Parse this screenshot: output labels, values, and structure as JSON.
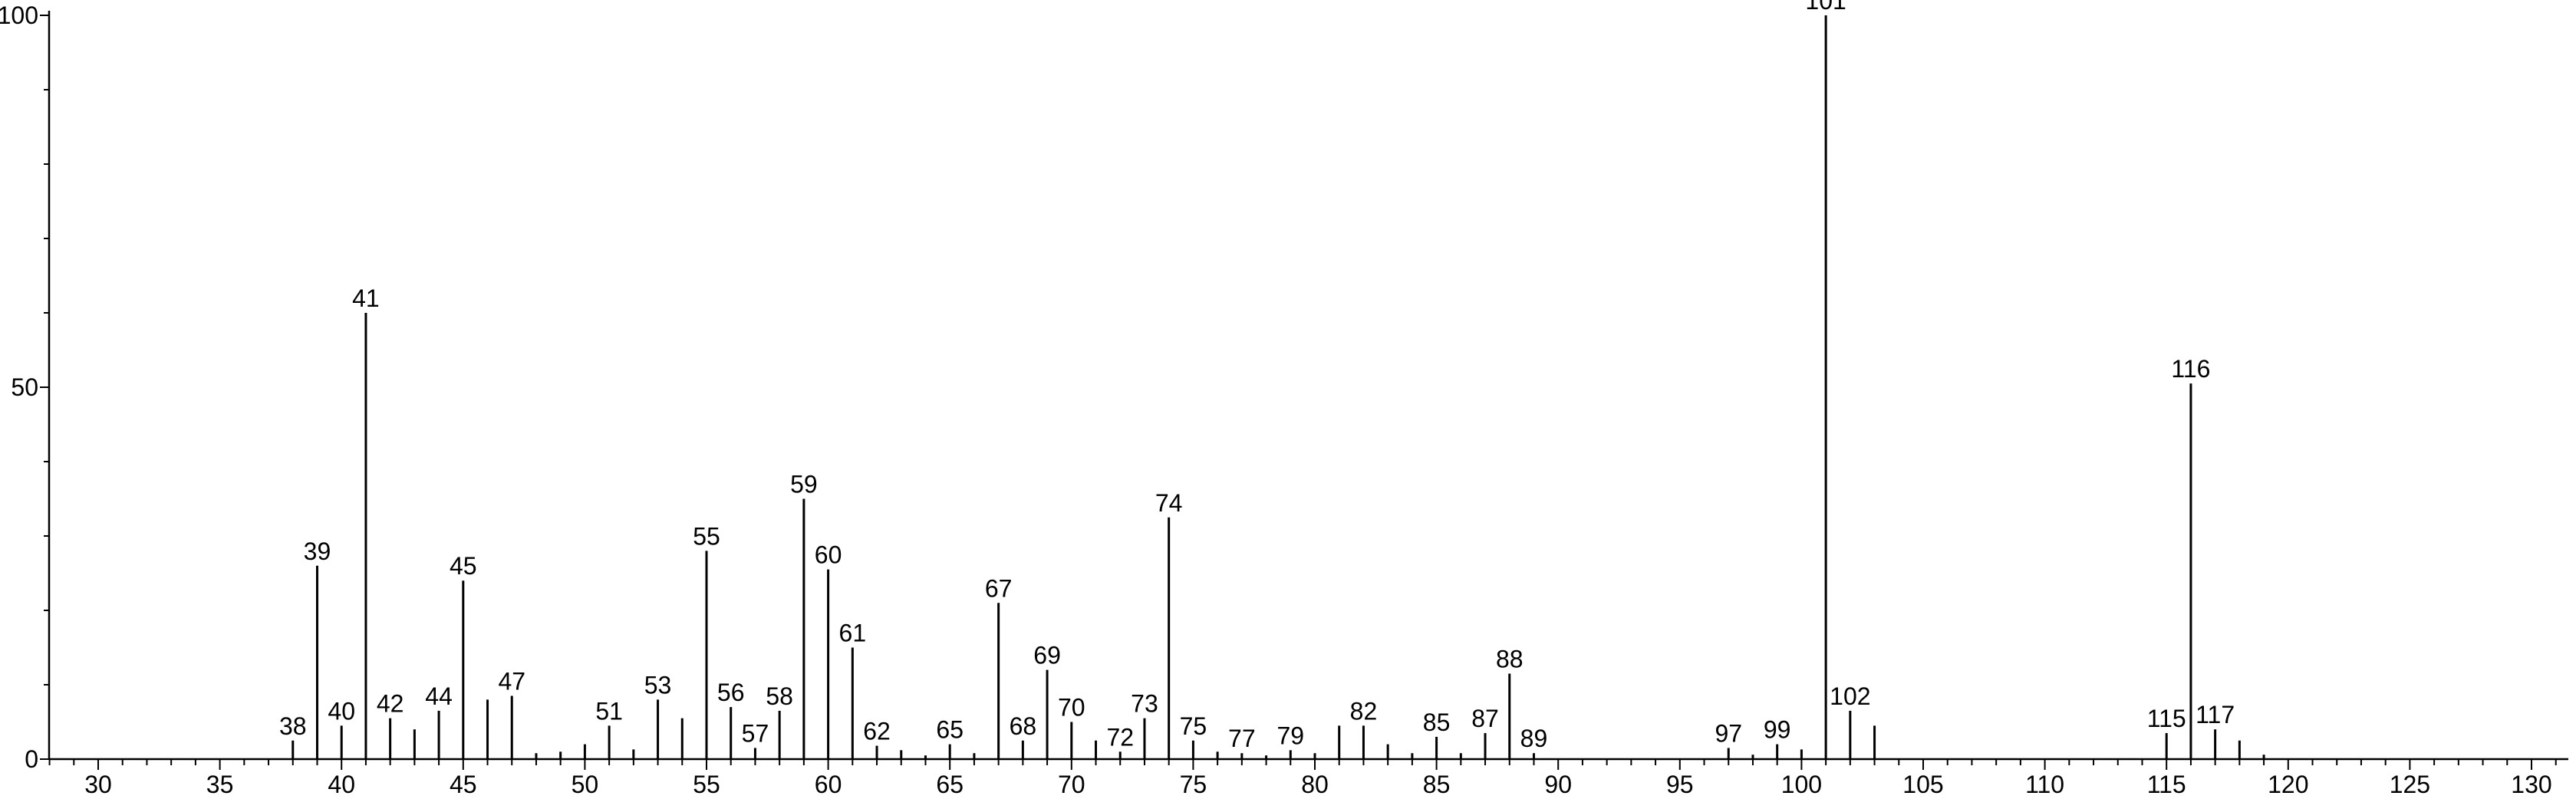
{
  "chart_data": {
    "type": "bar",
    "title": "",
    "xlabel": "",
    "ylabel": "",
    "xlim": [
      28,
      131
    ],
    "ylim": [
      0,
      100
    ],
    "x_ticks": [
      30,
      35,
      40,
      45,
      50,
      55,
      60,
      65,
      70,
      75,
      80,
      85,
      90,
      95,
      100,
      105,
      110,
      115,
      120,
      125,
      130
    ],
    "y_ticks": [
      0,
      50,
      100
    ],
    "grid": false,
    "legend": "none",
    "bar_color": "#000000",
    "peaks": [
      {
        "x": 38,
        "y": 2.5,
        "label": "38"
      },
      {
        "x": 39,
        "y": 26,
        "label": "39"
      },
      {
        "x": 40,
        "y": 4.5,
        "label": "40"
      },
      {
        "x": 41,
        "y": 60,
        "label": "41"
      },
      {
        "x": 42,
        "y": 5.5,
        "label": "42"
      },
      {
        "x": 43,
        "y": 4
      },
      {
        "x": 44,
        "y": 6.5,
        "label": "44"
      },
      {
        "x": 45,
        "y": 24,
        "label": "45"
      },
      {
        "x": 46,
        "y": 8
      },
      {
        "x": 47,
        "y": 8.5,
        "label": "47"
      },
      {
        "x": 48,
        "y": 0.8
      },
      {
        "x": 49,
        "y": 1
      },
      {
        "x": 50,
        "y": 2
      },
      {
        "x": 51,
        "y": 4.5,
        "label": "51"
      },
      {
        "x": 52,
        "y": 1.3
      },
      {
        "x": 53,
        "y": 8,
        "label": "53"
      },
      {
        "x": 54,
        "y": 5.5
      },
      {
        "x": 55,
        "y": 28,
        "label": "55"
      },
      {
        "x": 56,
        "y": 7,
        "label": "56"
      },
      {
        "x": 57,
        "y": 1.5,
        "label": "57"
      },
      {
        "x": 58,
        "y": 6.5,
        "label": "58"
      },
      {
        "x": 59,
        "y": 35,
        "label": "59"
      },
      {
        "x": 60,
        "y": 25.5,
        "label": "60"
      },
      {
        "x": 61,
        "y": 15,
        "label": "61"
      },
      {
        "x": 62,
        "y": 1.8,
        "label": "62"
      },
      {
        "x": 63,
        "y": 1.2
      },
      {
        "x": 64,
        "y": 0.5
      },
      {
        "x": 65,
        "y": 2,
        "label": "65"
      },
      {
        "x": 66,
        "y": 0.8
      },
      {
        "x": 67,
        "y": 21,
        "label": "67"
      },
      {
        "x": 68,
        "y": 2.5,
        "label": "68"
      },
      {
        "x": 69,
        "y": 12,
        "label": "69"
      },
      {
        "x": 70,
        "y": 5,
        "label": "70"
      },
      {
        "x": 71,
        "y": 2.5
      },
      {
        "x": 72,
        "y": 1,
        "label": "72"
      },
      {
        "x": 73,
        "y": 5.5,
        "label": "73"
      },
      {
        "x": 74,
        "y": 32.5,
        "label": "74"
      },
      {
        "x": 75,
        "y": 2.5,
        "label": "75"
      },
      {
        "x": 76,
        "y": 1
      },
      {
        "x": 77,
        "y": 0.8,
        "label": "77"
      },
      {
        "x": 78,
        "y": 0.5
      },
      {
        "x": 79,
        "y": 1.2,
        "label": "79"
      },
      {
        "x": 80,
        "y": 0.8
      },
      {
        "x": 81,
        "y": 4.5
      },
      {
        "x": 82,
        "y": 4.5,
        "label": "82"
      },
      {
        "x": 83,
        "y": 2
      },
      {
        "x": 84,
        "y": 0.8
      },
      {
        "x": 85,
        "y": 3,
        "label": "85"
      },
      {
        "x": 86,
        "y": 0.8
      },
      {
        "x": 87,
        "y": 3.5,
        "label": "87"
      },
      {
        "x": 88,
        "y": 11.5,
        "label": "88"
      },
      {
        "x": 89,
        "y": 0.8,
        "label": "89"
      },
      {
        "x": 97,
        "y": 1.5,
        "label": "97"
      },
      {
        "x": 98,
        "y": 0.6
      },
      {
        "x": 99,
        "y": 2,
        "label": "99"
      },
      {
        "x": 100,
        "y": 1.3
      },
      {
        "x": 101,
        "y": 100,
        "label": "101"
      },
      {
        "x": 102,
        "y": 6.5,
        "label": "102"
      },
      {
        "x": 103,
        "y": 4.5
      },
      {
        "x": 115,
        "y": 3.5,
        "label": "115"
      },
      {
        "x": 116,
        "y": 50.5,
        "label": "116"
      },
      {
        "x": 117,
        "y": 4,
        "label": "117"
      },
      {
        "x": 118,
        "y": 2.5
      },
      {
        "x": 119,
        "y": 0.6
      }
    ]
  }
}
